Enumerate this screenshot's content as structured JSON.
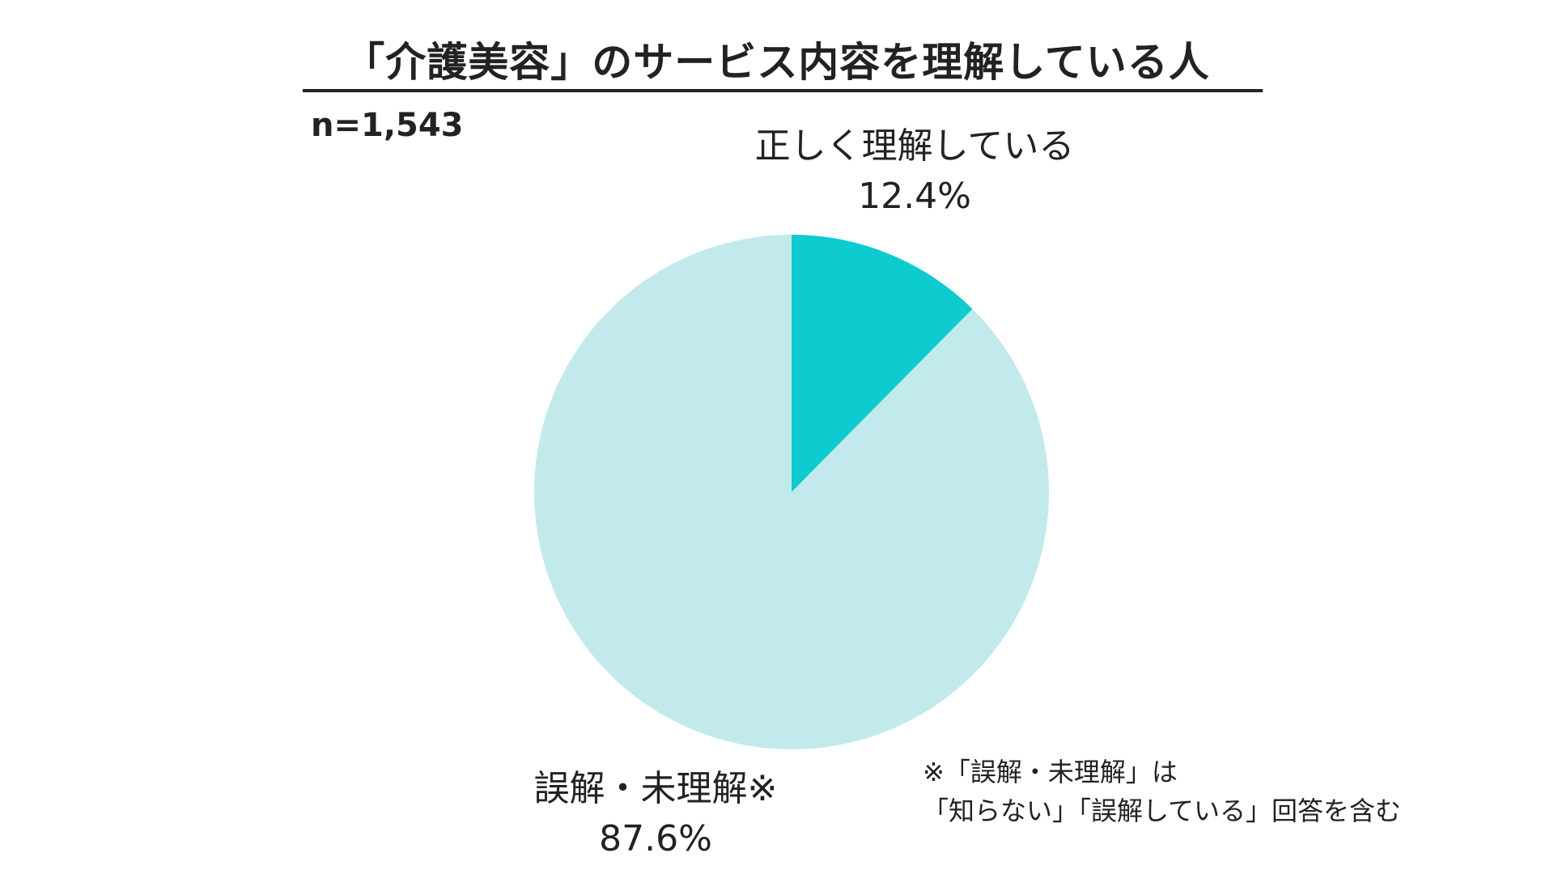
{
  "title": "「介護美容」のサービス内容を理解している人",
  "sample_size": "n=1,543",
  "chart_data": {
    "type": "pie",
    "title": "「介護美容」のサービス内容を理解している人",
    "slices": [
      {
        "label": "正しく理解している",
        "value": 12.4,
        "value_label": "12.4%",
        "color": "#0ecbd0"
      },
      {
        "label": "誤解・未理解※",
        "value": 87.6,
        "value_label": "87.6%",
        "color": "#c2eaec"
      }
    ],
    "start_angle": "12 o'clock",
    "direction": "clockwise"
  },
  "footnote": {
    "line1": "※「誤解・未理解」は",
    "line2": "「知らない」「誤解している」回答を含む"
  }
}
